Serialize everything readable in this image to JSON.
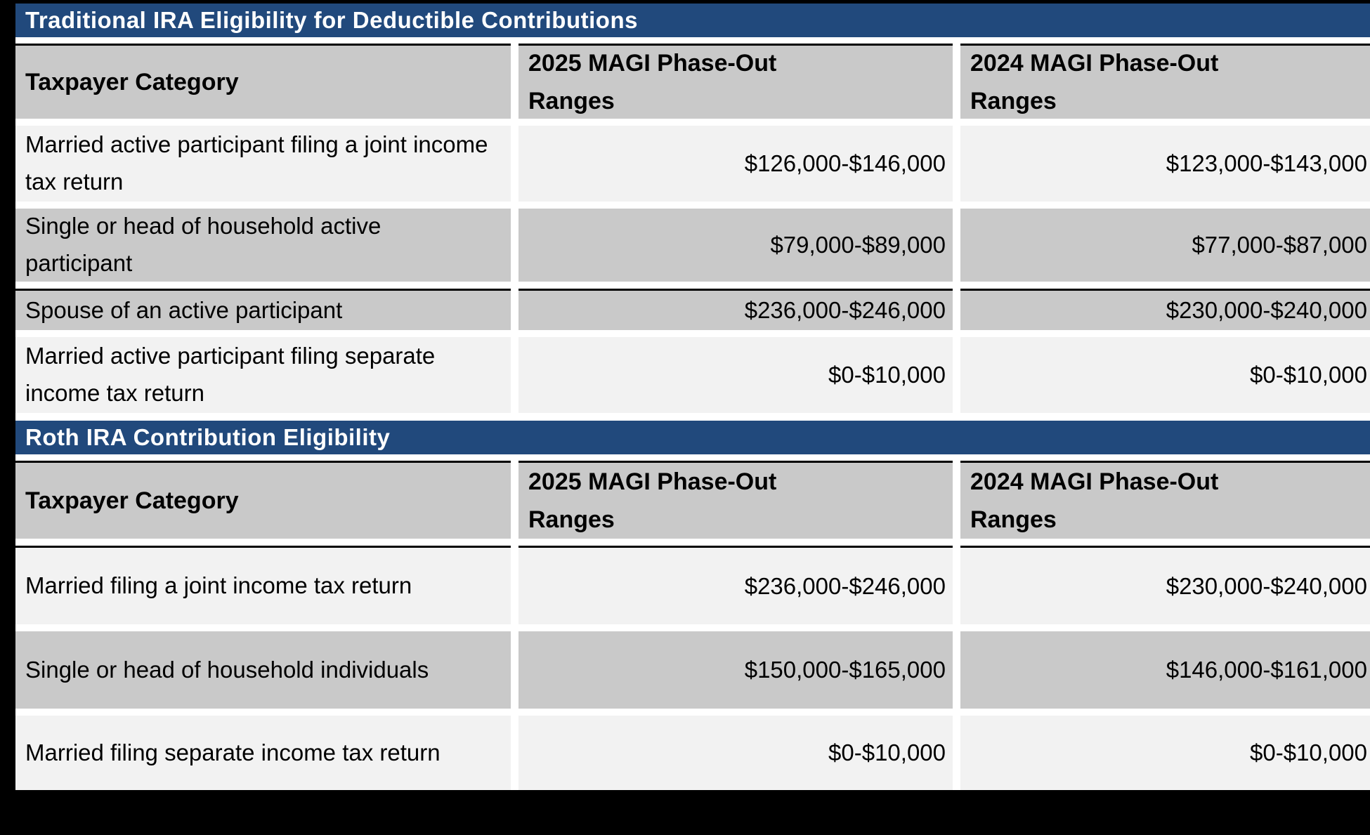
{
  "colors": {
    "page_background": "#000000",
    "title_bar": "#21497C",
    "title_text": "#FFFFFF",
    "header_row": "#C9C9C9",
    "row_light": "#F2F2F2",
    "row_dark": "#C9C9C9",
    "cell_gap": "#FFFFFF",
    "divider_line": "#000000",
    "cell_text": "#000000"
  },
  "tables": [
    {
      "title": "Traditional IRA Eligibility for Deductible Contributions",
      "columns": [
        "Taxpayer Category",
        "2025 MAGI Phase-Out Ranges",
        "2024 MAGI Phase-Out Ranges"
      ],
      "rows": [
        {
          "category": "Married active participant filing a joint income tax return",
          "magi_2025": "$126,000-$146,000",
          "magi_2024": "$123,000-$143,000"
        },
        {
          "category": "Single or head of household active participant",
          "magi_2025": "$79,000-$89,000",
          "magi_2024": "$77,000-$87,000"
        },
        {
          "category": "Spouse of an active participant",
          "magi_2025": "$236,000-$246,000",
          "magi_2024": "$230,000-$240,000"
        },
        {
          "category": "Married active participant filing separate income tax return",
          "magi_2025": "$0-$10,000",
          "magi_2024": "$0-$10,000"
        }
      ]
    },
    {
      "title": "Roth IRA Contribution Eligibility",
      "columns": [
        "Taxpayer Category",
        "2025 MAGI Phase-Out Ranges",
        "2024 MAGI Phase-Out Ranges"
      ],
      "rows": [
        {
          "category": "Married filing a joint income tax return",
          "magi_2025": "$236,000-$246,000",
          "magi_2024": "$230,000-$240,000"
        },
        {
          "category": "Single or head of household individuals",
          "magi_2025": "$150,000-$165,000",
          "magi_2024": "$146,000-$161,000"
        },
        {
          "category": "Married filing separate income tax return",
          "magi_2025": "$0-$10,000",
          "magi_2024": "$0-$10,000"
        }
      ]
    }
  ]
}
